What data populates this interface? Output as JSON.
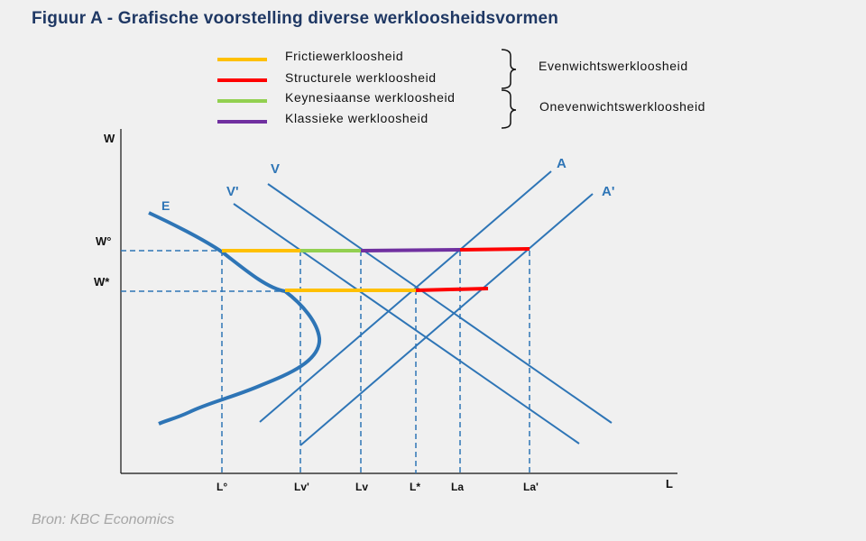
{
  "title": "Figuur A - Grafische voorstelling diverse werkloosheidsvormen",
  "source": "Bron: KBC Economics",
  "colors": {
    "background": "#f0f0f0",
    "title": "#1f3864",
    "curves": "#2e75b6",
    "frictional": "#ffc000",
    "structural": "#ff0000",
    "keynesian": "#92d050",
    "classical": "#7030a0"
  },
  "legend": {
    "items": [
      {
        "label": "Frictiewerkloosheid",
        "color": "#ffc000"
      },
      {
        "label": "Structurele werkloosheid",
        "color": "#ff0000"
      },
      {
        "label": "Keynesiaanse werkloosheid",
        "color": "#92d050"
      },
      {
        "label": "Klassieke werkloosheid",
        "color": "#7030a0"
      }
    ],
    "groups": {
      "equilibrium": "Evenwichtswerkloosheid",
      "disequilibrium": "Onevenwichtswerkloosheid"
    }
  },
  "axes": {
    "y_label": "W",
    "x_label": "L",
    "y_ticks": [
      "W°",
      "W*"
    ],
    "x_ticks": [
      "L°",
      "Lv'",
      "Lv",
      "L*",
      "La",
      "La'"
    ]
  },
  "curves": {
    "labels": [
      "E",
      "V'",
      "V",
      "A",
      "A'"
    ]
  }
}
